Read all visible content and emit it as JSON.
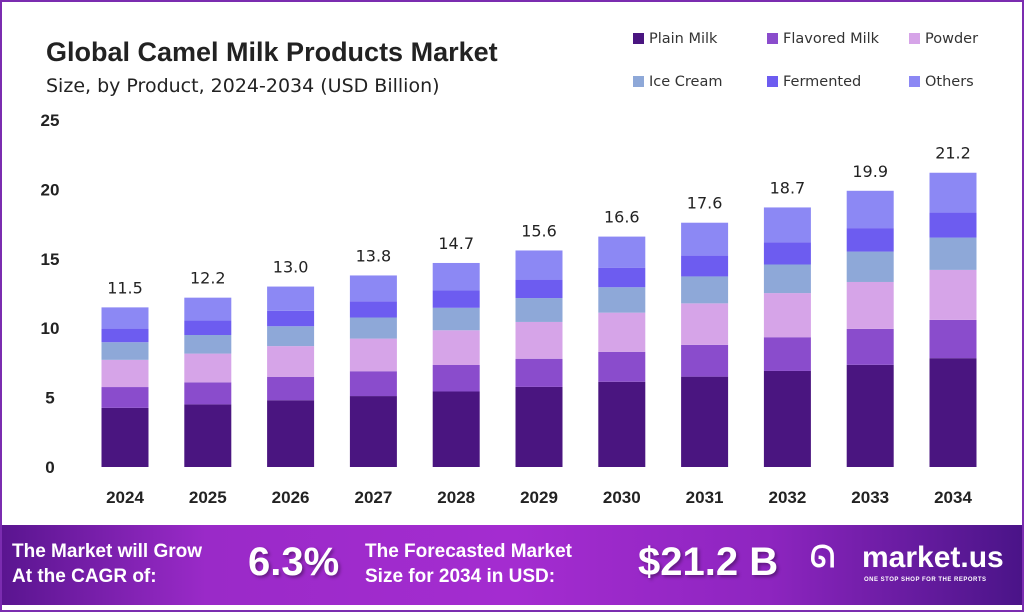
{
  "chart_data": {
    "type": "bar",
    "stacked": true,
    "title": "Global Camel Milk Products Market",
    "subtitle": "Size, by Product, 2024-2034 (USD Billion)",
    "xlabel": "",
    "ylabel": "",
    "ylim": [
      0,
      25
    ],
    "yticks": [
      0,
      5,
      10,
      15,
      20,
      25
    ],
    "grid": false,
    "legend_position": "top-right",
    "categories": [
      "2024",
      "2025",
      "2026",
      "2027",
      "2028",
      "2029",
      "2030",
      "2031",
      "2032",
      "2033",
      "2034"
    ],
    "totals": [
      11.5,
      12.2,
      13.0,
      13.8,
      14.7,
      15.6,
      16.6,
      17.6,
      18.7,
      19.9,
      21.2
    ],
    "total_labels": [
      "11.5",
      "12.2",
      "13.0",
      "13.8",
      "14.7",
      "15.6",
      "16.6",
      "17.6",
      "18.7",
      "19.9",
      "21.2"
    ],
    "series": [
      {
        "name": "Plain Milk",
        "color": "#4a1580",
        "values": [
          4.26,
          4.51,
          4.81,
          5.11,
          5.44,
          5.77,
          6.14,
          6.51,
          6.92,
          7.36,
          7.84
        ]
      },
      {
        "name": "Flavored Milk",
        "color": "#8a4ccc",
        "values": [
          1.5,
          1.59,
          1.69,
          1.79,
          1.91,
          2.03,
          2.16,
          2.29,
          2.43,
          2.59,
          2.76
        ]
      },
      {
        "name": "Powder",
        "color": "#d6a4e8",
        "values": [
          1.96,
          2.07,
          2.21,
          2.35,
          2.5,
          2.65,
          2.82,
          2.99,
          3.18,
          3.38,
          3.6
        ]
      },
      {
        "name": "Ice Cream",
        "color": "#8ea8d8",
        "values": [
          1.27,
          1.34,
          1.43,
          1.52,
          1.62,
          1.72,
          1.83,
          1.94,
          2.06,
          2.19,
          2.33
        ]
      },
      {
        "name": "Fermented",
        "color": "#6d5cf0",
        "values": [
          0.98,
          1.04,
          1.11,
          1.17,
          1.25,
          1.33,
          1.41,
          1.5,
          1.59,
          1.69,
          1.8
        ]
      },
      {
        "name": "Others",
        "color": "#8c88f4",
        "values": [
          1.53,
          1.65,
          1.75,
          1.86,
          1.98,
          2.1,
          2.24,
          2.37,
          2.52,
          2.69,
          2.87
        ]
      }
    ]
  },
  "footer": {
    "cagr_label": [
      "The Market will Grow",
      "At the CAGR of:"
    ],
    "cagr_value": "6.3%",
    "forecast_label": [
      "The Forecasted Market",
      "Size for 2034 in USD:"
    ],
    "forecast_value": "$21.2 B",
    "brand": "market.us",
    "tagline": "ONE STOP SHOP FOR THE REPORTS"
  },
  "colors": {
    "frame": "#7b2cb0",
    "text": "#222222"
  }
}
